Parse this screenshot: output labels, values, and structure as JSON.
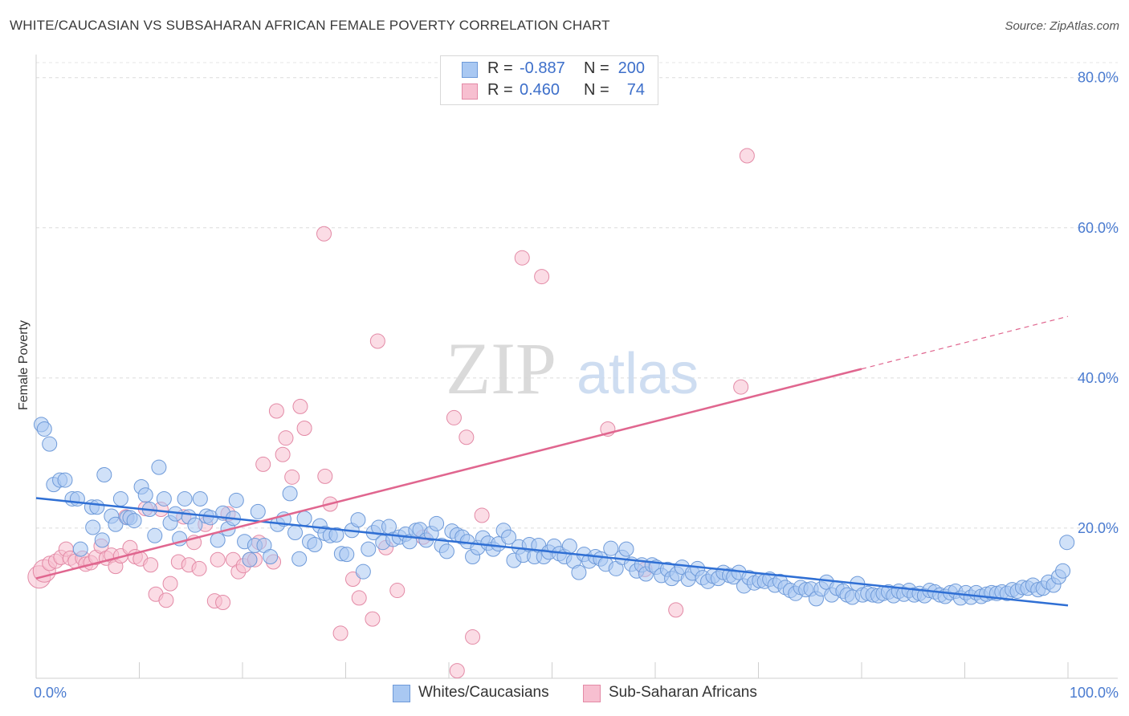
{
  "title": "WHITE/CAUCASIAN VS SUBSAHARAN AFRICAN FEMALE POVERTY CORRELATION CHART",
  "source": "Source: ZipAtlas.com",
  "watermark": {
    "zip": "ZIP",
    "atlas": "atlas"
  },
  "legend": {
    "r_label": "R =",
    "n_label": "N =",
    "rows": [
      {
        "r": "-0.887",
        "n": "200",
        "color": "#a9c8f2",
        "border": "#6e9ad9"
      },
      {
        "r": "0.460",
        "n": "74",
        "color": "#f7bfd0",
        "border": "#e38aa6"
      }
    ]
  },
  "bottom_legend": [
    {
      "label": "Whites/Caucasians",
      "color": "#a9c8f2",
      "border": "#6e9ad9"
    },
    {
      "label": "Sub-Saharan Africans",
      "color": "#f7bfd0",
      "border": "#e38aa6"
    }
  ],
  "chart_data": {
    "type": "scatter",
    "title": "WHITE/CAUCASIAN VS SUBSAHARAN AFRICAN FEMALE POVERTY CORRELATION CHART",
    "xlabel": "",
    "ylabel": "Female Poverty",
    "xlim": [
      0,
      100
    ],
    "ylim": [
      0,
      80
    ],
    "x_tick_labels": [
      "0.0%",
      "100.0%"
    ],
    "y_tick_labels": [
      "20.0%",
      "40.0%",
      "60.0%",
      "80.0%"
    ],
    "y_ticks": [
      20,
      40,
      60,
      80
    ],
    "grid": "horizontal dashed",
    "legend_position": "top-center",
    "series": [
      {
        "name": "Whites/Caucasians",
        "color": "#6e9ad9",
        "fill": "#a9c8f2",
        "r": -0.887,
        "n": 200,
        "trend": {
          "x0": 0,
          "y0": 24.0,
          "x1": 100,
          "y1": 9.7
        },
        "points": [
          [
            0.5,
            33.8
          ],
          [
            0.8,
            33.2
          ],
          [
            1.3,
            31.2
          ],
          [
            1.7,
            25.8
          ],
          [
            2.3,
            26.4
          ],
          [
            2.8,
            26.4
          ],
          [
            3.5,
            23.9
          ],
          [
            4.0,
            23.9
          ],
          [
            4.3,
            17.2
          ],
          [
            5.4,
            22.8
          ],
          [
            5.5,
            20.1
          ],
          [
            5.9,
            22.8
          ],
          [
            6.4,
            18.4
          ],
          [
            6.6,
            27.1
          ],
          [
            7.3,
            21.6
          ],
          [
            7.7,
            20.5
          ],
          [
            8.2,
            23.9
          ],
          [
            8.8,
            21.4
          ],
          [
            9.1,
            21.4
          ],
          [
            9.5,
            21.0
          ],
          [
            10.2,
            25.5
          ],
          [
            10.6,
            24.4
          ],
          [
            11.0,
            22.5
          ],
          [
            11.5,
            19.0
          ],
          [
            11.9,
            28.1
          ],
          [
            12.4,
            23.9
          ],
          [
            13.0,
            20.7
          ],
          [
            13.5,
            21.9
          ],
          [
            13.9,
            18.6
          ],
          [
            14.4,
            23.9
          ],
          [
            14.8,
            21.5
          ],
          [
            15.4,
            20.4
          ],
          [
            15.9,
            23.9
          ],
          [
            16.5,
            21.6
          ],
          [
            16.9,
            21.4
          ],
          [
            17.6,
            18.4
          ],
          [
            18.1,
            22.0
          ],
          [
            18.6,
            19.9
          ],
          [
            19.1,
            21.3
          ],
          [
            19.4,
            23.7
          ],
          [
            20.2,
            18.2
          ],
          [
            20.7,
            15.8
          ],
          [
            21.2,
            17.7
          ],
          [
            21.5,
            22.2
          ],
          [
            22.1,
            17.7
          ],
          [
            22.7,
            16.2
          ],
          [
            23.4,
            20.5
          ],
          [
            24.0,
            21.2
          ],
          [
            24.6,
            24.6
          ],
          [
            25.1,
            19.4
          ],
          [
            25.5,
            15.9
          ],
          [
            26.0,
            21.3
          ],
          [
            26.5,
            18.2
          ],
          [
            27.0,
            17.8
          ],
          [
            27.5,
            20.3
          ],
          [
            28.0,
            19.3
          ],
          [
            28.5,
            19.0
          ],
          [
            29.1,
            19.1
          ],
          [
            29.6,
            16.6
          ],
          [
            30.1,
            16.5
          ],
          [
            30.6,
            19.7
          ],
          [
            31.2,
            21.1
          ],
          [
            31.7,
            14.2
          ],
          [
            32.2,
            17.2
          ],
          [
            32.7,
            19.4
          ],
          [
            33.2,
            20.1
          ],
          [
            33.6,
            18.1
          ],
          [
            34.2,
            20.2
          ],
          [
            34.6,
            18.5
          ],
          [
            35.2,
            18.8
          ],
          [
            35.8,
            19.2
          ],
          [
            36.2,
            18.2
          ],
          [
            36.8,
            19.7
          ],
          [
            37.2,
            19.8
          ],
          [
            37.8,
            18.4
          ],
          [
            38.3,
            19.3
          ],
          [
            38.8,
            20.6
          ],
          [
            39.3,
            17.7
          ],
          [
            39.8,
            16.9
          ],
          [
            40.3,
            19.6
          ],
          [
            40.8,
            19.1
          ],
          [
            41.3,
            18.8
          ],
          [
            41.8,
            18.2
          ],
          [
            42.3,
            16.2
          ],
          [
            42.8,
            17.4
          ],
          [
            43.3,
            18.7
          ],
          [
            43.8,
            18.0
          ],
          [
            44.3,
            17.2
          ],
          [
            44.8,
            17.9
          ],
          [
            45.3,
            19.7
          ],
          [
            45.8,
            18.8
          ],
          [
            46.3,
            15.7
          ],
          [
            46.8,
            17.5
          ],
          [
            47.2,
            16.4
          ],
          [
            47.8,
            17.8
          ],
          [
            48.3,
            16.2
          ],
          [
            48.7,
            17.7
          ],
          [
            49.2,
            16.2
          ],
          [
            49.7,
            16.8
          ],
          [
            50.2,
            17.6
          ],
          [
            50.7,
            16.6
          ],
          [
            51.2,
            16.2
          ],
          [
            51.7,
            17.6
          ],
          [
            52.1,
            15.6
          ],
          [
            52.6,
            14.1
          ],
          [
            53.1,
            16.5
          ],
          [
            53.6,
            15.6
          ],
          [
            54.2,
            16.2
          ],
          [
            54.7,
            15.9
          ],
          [
            55.2,
            15.2
          ],
          [
            55.7,
            17.3
          ],
          [
            56.2,
            14.6
          ],
          [
            56.8,
            16.1
          ],
          [
            57.2,
            17.2
          ],
          [
            57.7,
            15.2
          ],
          [
            58.2,
            14.3
          ],
          [
            58.7,
            15.1
          ],
          [
            59.1,
            13.9
          ],
          [
            59.7,
            15.1
          ],
          [
            60.1,
            14.8
          ],
          [
            60.6,
            13.7
          ],
          [
            61.2,
            14.5
          ],
          [
            61.6,
            13.3
          ],
          [
            62.1,
            13.9
          ],
          [
            62.6,
            14.8
          ],
          [
            63.2,
            13.2
          ],
          [
            63.6,
            14.0
          ],
          [
            64.1,
            14.6
          ],
          [
            64.6,
            13.4
          ],
          [
            65.1,
            12.9
          ],
          [
            65.6,
            13.6
          ],
          [
            66.1,
            13.3
          ],
          [
            66.6,
            14.1
          ],
          [
            67.2,
            13.7
          ],
          [
            67.6,
            13.5
          ],
          [
            68.1,
            14.1
          ],
          [
            68.6,
            12.3
          ],
          [
            69.1,
            13.4
          ],
          [
            69.6,
            12.7
          ],
          [
            70.1,
            13.0
          ],
          [
            70.6,
            12.9
          ],
          [
            71.1,
            13.2
          ],
          [
            71.6,
            12.4
          ],
          [
            72.1,
            12.9
          ],
          [
            72.6,
            12.1
          ],
          [
            73.1,
            11.7
          ],
          [
            73.6,
            11.3
          ],
          [
            74.1,
            12.1
          ],
          [
            74.6,
            11.8
          ],
          [
            75.1,
            11.9
          ],
          [
            75.6,
            10.6
          ],
          [
            76.1,
            11.9
          ],
          [
            76.6,
            12.8
          ],
          [
            77.1,
            11.1
          ],
          [
            77.6,
            12.0
          ],
          [
            78.2,
            11.6
          ],
          [
            78.6,
            11.1
          ],
          [
            79.1,
            10.8
          ],
          [
            79.6,
            12.6
          ],
          [
            80.1,
            11.1
          ],
          [
            80.6,
            11.3
          ],
          [
            81.1,
            11.1
          ],
          [
            81.6,
            11.0
          ],
          [
            82.1,
            11.3
          ],
          [
            82.6,
            11.5
          ],
          [
            83.1,
            11.0
          ],
          [
            83.6,
            11.6
          ],
          [
            84.1,
            11.2
          ],
          [
            84.6,
            11.7
          ],
          [
            85.1,
            11.1
          ],
          [
            85.6,
            11.3
          ],
          [
            86.1,
            11.0
          ],
          [
            86.6,
            11.7
          ],
          [
            87.1,
            11.5
          ],
          [
            87.6,
            11.1
          ],
          [
            88.1,
            10.9
          ],
          [
            88.6,
            11.4
          ],
          [
            89.1,
            11.6
          ],
          [
            89.6,
            10.7
          ],
          [
            90.1,
            11.4
          ],
          [
            90.6,
            10.8
          ],
          [
            91.1,
            11.4
          ],
          [
            91.6,
            10.9
          ],
          [
            92.1,
            11.2
          ],
          [
            92.6,
            11.4
          ],
          [
            93.1,
            11.3
          ],
          [
            93.6,
            11.5
          ],
          [
            94.1,
            11.3
          ],
          [
            94.6,
            11.8
          ],
          [
            95.1,
            11.6
          ],
          [
            95.6,
            12.1
          ],
          [
            96.1,
            12.0
          ],
          [
            96.6,
            12.4
          ],
          [
            97.1,
            11.8
          ],
          [
            97.6,
            12.0
          ],
          [
            98.1,
            12.8
          ],
          [
            98.6,
            12.4
          ],
          [
            99.1,
            13.5
          ],
          [
            99.5,
            14.3
          ],
          [
            99.9,
            18.1
          ]
        ]
      },
      {
        "name": "Sub-Saharan Africans",
        "color": "#e38aa6",
        "fill": "#f7bfd0",
        "r": 0.46,
        "n": 74,
        "trend": {
          "x0": 0,
          "y0": 13.3,
          "x1": 80,
          "y1": 41.2,
          "dashed_to": {
            "x": 100,
            "y": 48.2
          }
        },
        "points": [
          [
            0.3,
            13.5
          ],
          [
            0.8,
            14.3
          ],
          [
            1.3,
            15.3
          ],
          [
            1.9,
            15.6
          ],
          [
            2.4,
            16.1
          ],
          [
            2.9,
            17.2
          ],
          [
            3.3,
            16.0
          ],
          [
            3.8,
            15.6
          ],
          [
            4.5,
            16.0
          ],
          [
            4.8,
            15.2
          ],
          [
            5.3,
            15.4
          ],
          [
            5.8,
            16.1
          ],
          [
            6.3,
            17.6
          ],
          [
            6.8,
            16.0
          ],
          [
            7.3,
            16.4
          ],
          [
            7.7,
            14.9
          ],
          [
            8.2,
            16.3
          ],
          [
            8.7,
            21.5
          ],
          [
            9.1,
            17.4
          ],
          [
            9.6,
            16.2
          ],
          [
            10.1,
            15.9
          ],
          [
            10.6,
            22.6
          ],
          [
            11.1,
            15.1
          ],
          [
            11.6,
            11.2
          ],
          [
            12.1,
            22.5
          ],
          [
            12.6,
            10.4
          ],
          [
            13.0,
            12.6
          ],
          [
            13.8,
            15.5
          ],
          [
            14.3,
            21.5
          ],
          [
            14.8,
            15.1
          ],
          [
            15.3,
            18.1
          ],
          [
            15.8,
            14.6
          ],
          [
            16.4,
            20.5
          ],
          [
            17.3,
            10.3
          ],
          [
            17.6,
            15.8
          ],
          [
            18.1,
            10.1
          ],
          [
            18.6,
            21.9
          ],
          [
            19.1,
            15.8
          ],
          [
            19.6,
            14.2
          ],
          [
            20.1,
            15.0
          ],
          [
            20.7,
            15.8
          ],
          [
            21.2,
            15.8
          ],
          [
            21.6,
            18.1
          ],
          [
            22.0,
            28.5
          ],
          [
            23.0,
            15.5
          ],
          [
            23.3,
            35.6
          ],
          [
            23.9,
            29.8
          ],
          [
            24.2,
            32.0
          ],
          [
            24.8,
            26.8
          ],
          [
            25.6,
            36.2
          ],
          [
            26.0,
            33.3
          ],
          [
            28.0,
            26.9
          ],
          [
            27.9,
            59.2
          ],
          [
            28.5,
            23.2
          ],
          [
            29.5,
            6.0
          ],
          [
            30.7,
            13.2
          ],
          [
            31.3,
            10.7
          ],
          [
            32.6,
            7.9
          ],
          [
            33.1,
            44.9
          ],
          [
            33.9,
            17.4
          ],
          [
            35.0,
            11.7
          ],
          [
            37.5,
            18.8
          ],
          [
            40.5,
            34.7
          ],
          [
            40.8,
            1.0
          ],
          [
            41.7,
            32.1
          ],
          [
            42.3,
            5.5
          ],
          [
            43.2,
            21.7
          ],
          [
            47.1,
            56.0
          ],
          [
            49.0,
            53.5
          ],
          [
            55.4,
            33.2
          ],
          [
            59.0,
            14.5
          ],
          [
            62.0,
            9.1
          ],
          [
            68.3,
            38.8
          ],
          [
            68.9,
            69.6
          ]
        ]
      }
    ]
  }
}
